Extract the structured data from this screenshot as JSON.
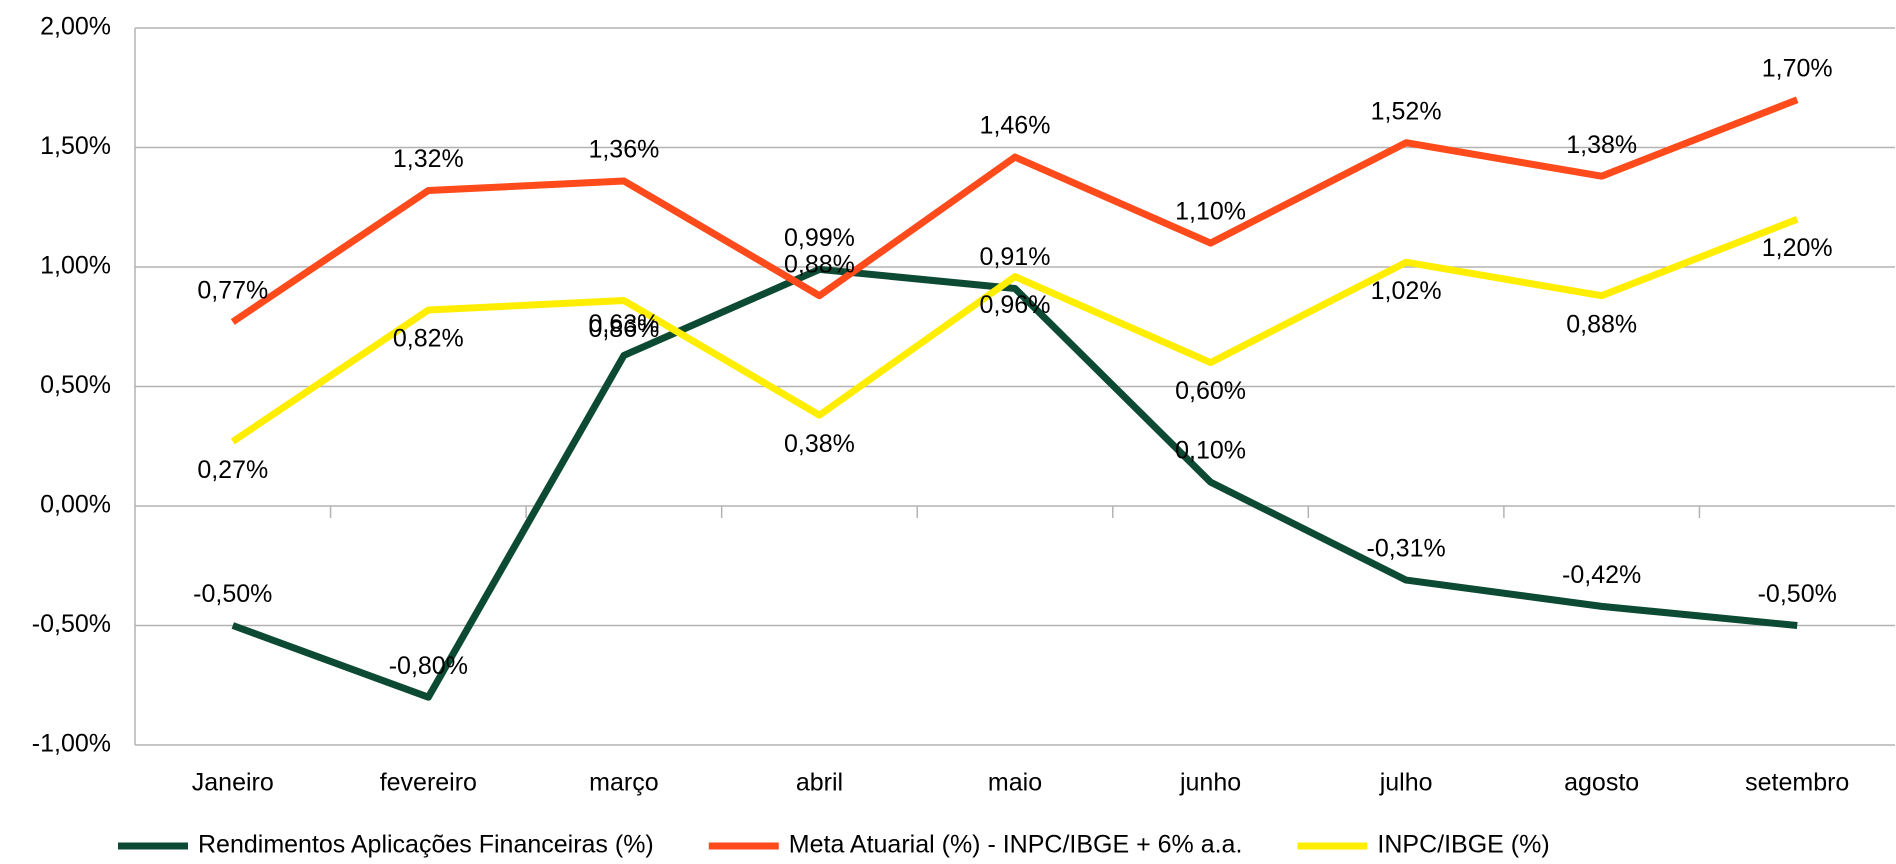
{
  "chart_data": {
    "type": "line",
    "categories": [
      "Janeiro",
      "fevereiro",
      "março",
      "abril",
      "maio",
      "junho",
      "julho",
      "agosto",
      "setembro"
    ],
    "series": [
      {
        "name": "Rendimentos Aplicações Financeiras (%)",
        "color": "#0d4a33",
        "values": [
          -0.5,
          -0.8,
          0.63,
          0.99,
          0.91,
          0.1,
          -0.31,
          -0.42,
          -0.5
        ],
        "value_labels": [
          "-0,50%",
          "-0,80%",
          "0,63%",
          "0,99%",
          "0,91%",
          "0,10%",
          "-0,31%",
          "-0,42%",
          "-0,50%"
        ]
      },
      {
        "name": "Meta Atuarial (%) - INPC/IBGE + 6% a.a.",
        "color": "#ff4a1c",
        "values": [
          0.77,
          1.32,
          1.36,
          0.88,
          1.46,
          1.1,
          1.52,
          1.38,
          1.7
        ],
        "value_labels": [
          "0,77%",
          "1,32%",
          "1,36%",
          "0,88%",
          "1,46%",
          "1,10%",
          "1,52%",
          "1,38%",
          "1,70%"
        ]
      },
      {
        "name": "INPC/IBGE (%)",
        "color": "#ffee00",
        "values": [
          0.27,
          0.82,
          0.86,
          0.38,
          0.96,
          0.6,
          1.02,
          0.88,
          1.2
        ],
        "value_labels": [
          "0,27%",
          "0,82%",
          "0,86%",
          "0,38%",
          "0,96%",
          "0,60%",
          "1,02%",
          "0,88%",
          "1,20%"
        ]
      }
    ],
    "ylim": [
      -1,
      2
    ],
    "yticks": [
      {
        "value": -1,
        "label": "-1,00%"
      },
      {
        "value": -0.5,
        "label": "-0,50%"
      },
      {
        "value": 0,
        "label": "0,00%"
      },
      {
        "value": 0.5,
        "label": "0,50%"
      },
      {
        "value": 1,
        "label": "1,00%"
      },
      {
        "value": 1.5,
        "label": "1,50%"
      },
      {
        "value": 2,
        "label": "2,00%"
      }
    ],
    "grid": true,
    "legend": "bottom"
  }
}
